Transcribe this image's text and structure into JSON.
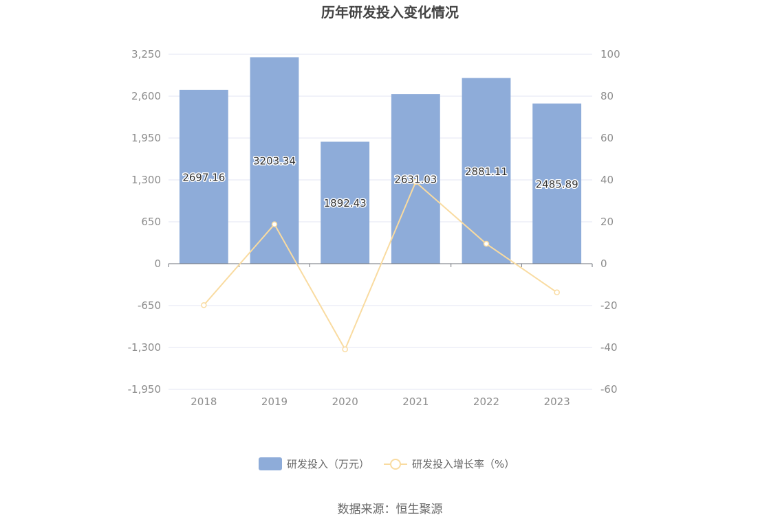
{
  "chart_data": {
    "type": "bar",
    "title": "历年研发投入变化情况",
    "categories": [
      "2018",
      "2019",
      "2020",
      "2021",
      "2022",
      "2023"
    ],
    "series": [
      {
        "name": "研发投入（万元）",
        "type": "bar",
        "axis": "left",
        "color": "#8eacd9",
        "values": [
          2697.16,
          3203.34,
          1892.43,
          2631.03,
          2881.11,
          2485.89
        ],
        "labels": [
          "2697.16",
          "3203.34",
          "1892.43",
          "2631.03",
          "2881.11",
          "2485.89"
        ]
      },
      {
        "name": "研发投入增长率（%）",
        "type": "line",
        "axis": "right",
        "color": "#f9dba0",
        "values": [
          -19.8,
          18.8,
          -40.9,
          39.0,
          9.5,
          -13.7
        ]
      }
    ],
    "left_axis": {
      "ylim": [
        -1950,
        3250
      ],
      "ticks": [
        3250,
        2600,
        1950,
        1300,
        650,
        0,
        -650,
        -1300,
        -1950
      ],
      "tick_labels": [
        "3,250",
        "2,600",
        "1,950",
        "1,300",
        "650",
        "0",
        "-650",
        "-1,300",
        "-1,950"
      ]
    },
    "right_axis": {
      "ylim": [
        -60,
        100
      ],
      "ticks": [
        100,
        80,
        60,
        40,
        20,
        0,
        -20,
        -40,
        -60
      ],
      "tick_labels": [
        "100",
        "80",
        "60",
        "40",
        "20",
        "0",
        "-20",
        "-40",
        "-60"
      ]
    },
    "grid": true,
    "legend_position": "bottom-center"
  },
  "source_text": "数据来源：恒生聚源"
}
